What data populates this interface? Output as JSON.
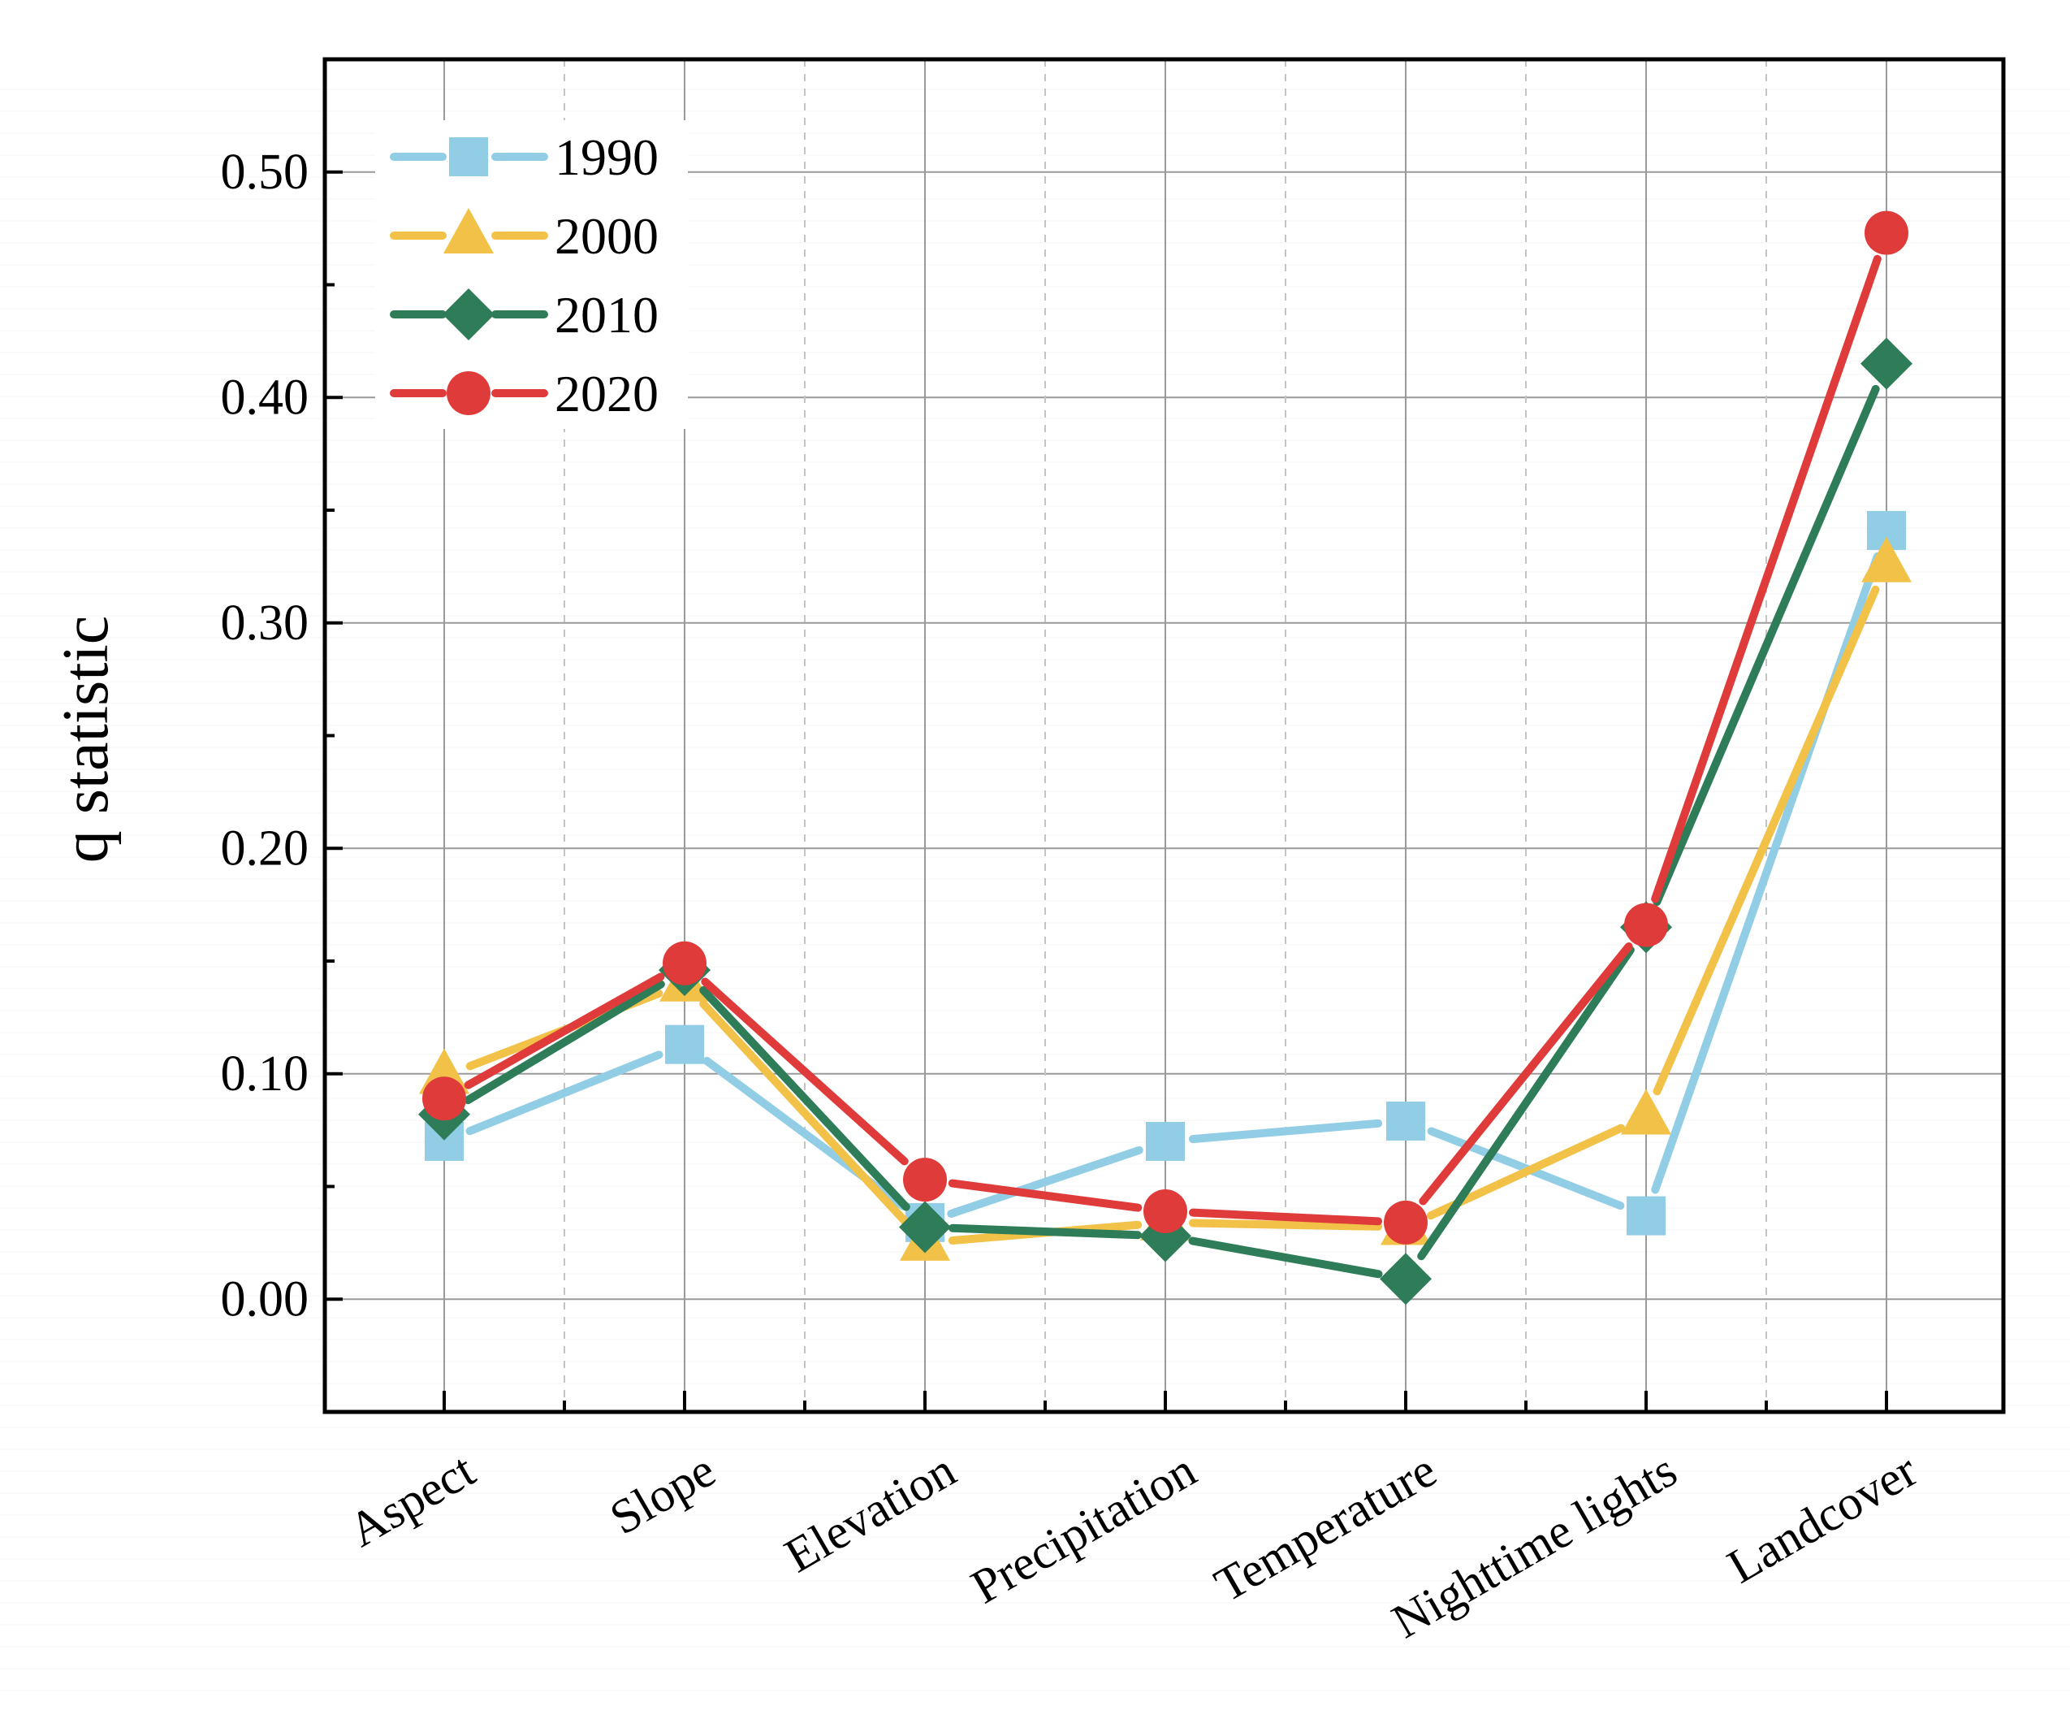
{
  "chart_data": {
    "type": "line",
    "title": "",
    "xlabel": "",
    "ylabel": "q statistic",
    "ylim": [
      -0.05,
      0.55
    ],
    "yticks": [
      0.0,
      0.1,
      0.2,
      0.3,
      0.4,
      0.5
    ],
    "ytick_labels": [
      "0.00",
      "0.10",
      "0.20",
      "0.30",
      "0.40",
      "0.50"
    ],
    "grid": true,
    "legend_position": "top-left",
    "categories": [
      "Aspect",
      "Slope",
      "Elevation",
      "Precipitation",
      "Temperature",
      "Nighttime lights",
      "Landcover"
    ],
    "series": [
      {
        "name": "1990",
        "color": "#92CDE6",
        "marker": "square",
        "values": [
          0.07,
          0.113,
          0.034,
          0.07,
          0.079,
          0.037,
          0.341
        ]
      },
      {
        "name": "2000",
        "color": "#F1C148",
        "marker": "triangle",
        "values": [
          0.099,
          0.14,
          0.025,
          0.034,
          0.032,
          0.081,
          0.326
        ]
      },
      {
        "name": "2010",
        "color": "#2E7D58",
        "marker": "diamond",
        "values": [
          0.082,
          0.146,
          0.032,
          0.028,
          0.009,
          0.165,
          0.415
        ]
      },
      {
        "name": "2020",
        "color": "#DF3B3B",
        "marker": "circle",
        "values": [
          0.089,
          0.149,
          0.053,
          0.039,
          0.034,
          0.166,
          0.473
        ]
      }
    ]
  }
}
